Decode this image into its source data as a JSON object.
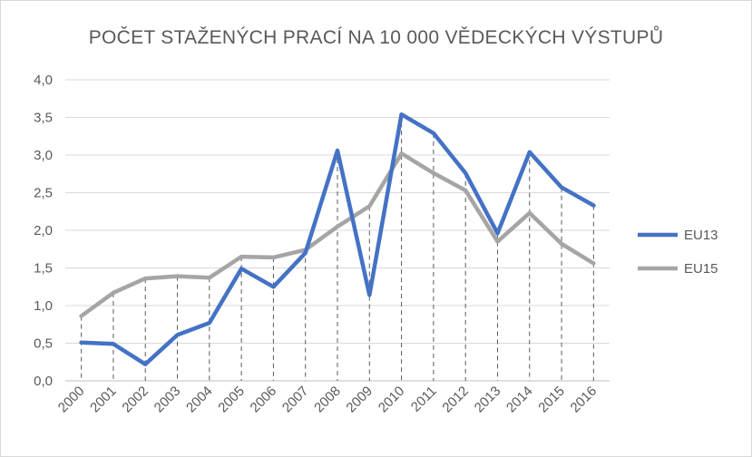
{
  "chart_data": {
    "type": "line",
    "title": "POČET STAŽENÝCH PRACÍ NA 10 000 VĚDECKÝCH VÝSTUPŮ",
    "categories": [
      "2000",
      "2001",
      "2002",
      "2003",
      "2004",
      "2005",
      "2006",
      "2007",
      "2008",
      "2009",
      "2010",
      "2011",
      "2012",
      "2013",
      "2014",
      "2015",
      "2016"
    ],
    "series": [
      {
        "name": "EU13",
        "color": "#4472c4",
        "values": [
          0.51,
          0.49,
          0.22,
          0.61,
          0.77,
          1.49,
          1.25,
          1.7,
          3.06,
          1.14,
          3.54,
          3.29,
          2.76,
          1.96,
          3.04,
          2.57,
          2.33
        ]
      },
      {
        "name": "EU15",
        "color": "#a5a5a5",
        "values": [
          0.86,
          1.17,
          1.36,
          1.39,
          1.37,
          1.65,
          1.64,
          1.74,
          2.05,
          2.32,
          3.02,
          2.76,
          2.53,
          1.85,
          2.23,
          1.82,
          1.56
        ]
      }
    ],
    "y_ticks": [
      "0,0",
      "0,5",
      "1,0",
      "1,5",
      "2,0",
      "2,5",
      "3,0",
      "3,5",
      "4,0"
    ],
    "ylim": [
      0,
      4
    ],
    "grid": true,
    "legend_position": "right",
    "drop_lines": true
  }
}
